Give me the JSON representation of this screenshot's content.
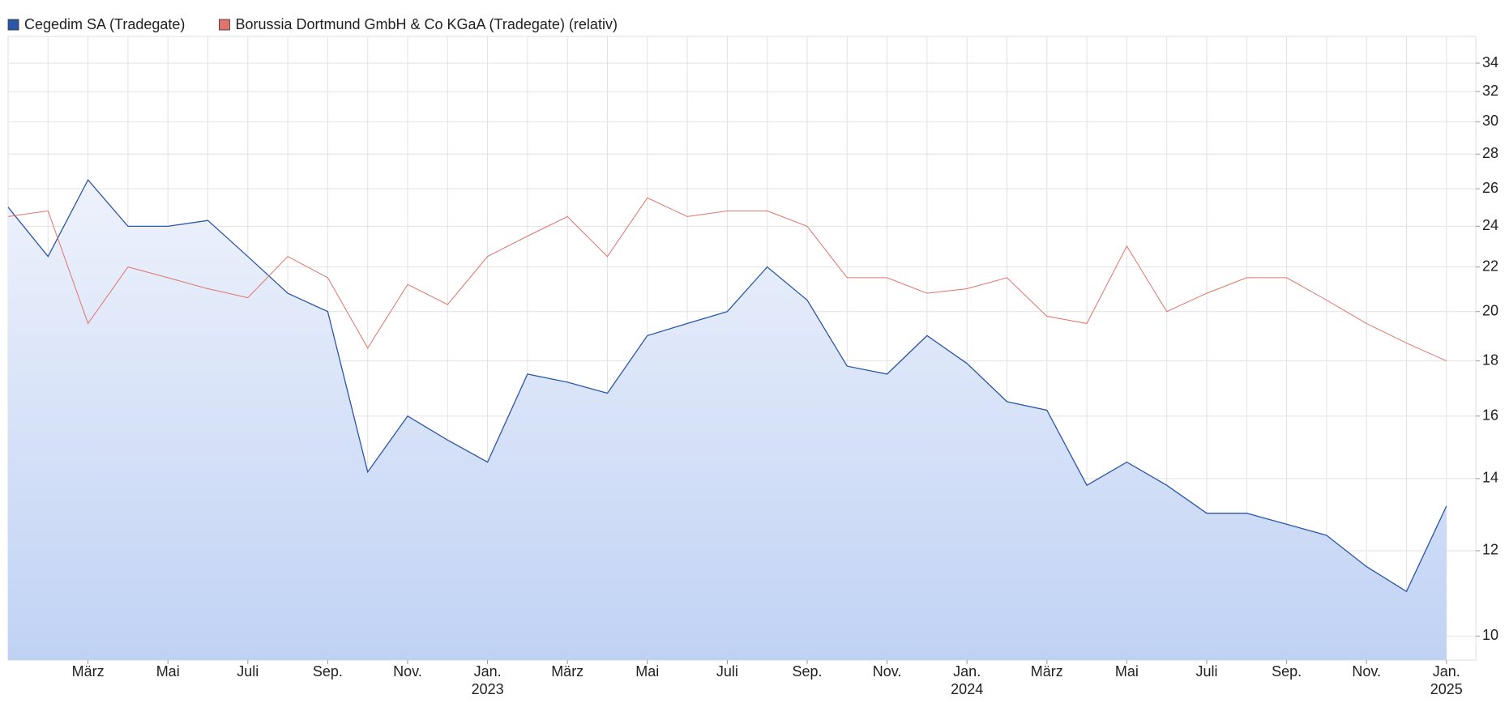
{
  "chart_data": {
    "type": "line",
    "log_scale": true,
    "grid": true,
    "legend": "top-left",
    "x": [
      "2022-01",
      "2022-02",
      "2022-03",
      "2022-04",
      "2022-05",
      "2022-06",
      "2022-07",
      "2022-08",
      "2022-09",
      "2022-10",
      "2022-11",
      "2022-12",
      "2023-01",
      "2023-02",
      "2023-03",
      "2023-04",
      "2023-05",
      "2023-06",
      "2023-07",
      "2023-08",
      "2023-09",
      "2023-10",
      "2023-11",
      "2023-12",
      "2024-01",
      "2024-02",
      "2024-03",
      "2024-04",
      "2024-05",
      "2024-06",
      "2024-07",
      "2024-08",
      "2024-09",
      "2024-10",
      "2024-11",
      "2024-12",
      "2025-01"
    ],
    "series": [
      {
        "name": "Cegedim SA (Tradegate)",
        "color": "#2a56a6",
        "area": true,
        "values": [
          25.0,
          22.5,
          26.5,
          24.0,
          24.0,
          24.3,
          22.5,
          20.8,
          20.0,
          14.2,
          16.0,
          15.2,
          14.5,
          17.5,
          17.2,
          16.8,
          19.0,
          19.5,
          20.0,
          22.0,
          20.5,
          17.8,
          17.5,
          19.0,
          17.9,
          16.5,
          16.2,
          13.8,
          14.5,
          13.8,
          13.0,
          13.0,
          12.7,
          12.4,
          11.6,
          11.0,
          13.2
        ]
      },
      {
        "name": "Borussia Dortmund GmbH & Co KGaA (Tradegate) (relativ)",
        "color": "#e0736a",
        "values": [
          24.5,
          24.8,
          19.5,
          22.0,
          21.5,
          21.0,
          20.6,
          22.5,
          21.5,
          18.5,
          21.2,
          20.3,
          22.5,
          23.5,
          24.5,
          22.5,
          25.5,
          24.5,
          24.8,
          24.8,
          24.0,
          21.5,
          21.5,
          20.8,
          21.0,
          21.5,
          19.8,
          19.5,
          23.0,
          20.0,
          20.8,
          21.5,
          21.5,
          20.5,
          19.5,
          18.7,
          18.0
        ]
      }
    ],
    "ylim": [
      9.5,
      36
    ],
    "yticks": [
      10,
      12,
      14,
      16,
      18,
      20,
      22,
      24,
      26,
      28,
      30,
      32,
      34
    ],
    "xticks": [
      {
        "value": "2022-03",
        "label": "März"
      },
      {
        "value": "2022-05",
        "label": "Mai"
      },
      {
        "value": "2022-07",
        "label": "Juli"
      },
      {
        "value": "2022-09",
        "label": "Sep."
      },
      {
        "value": "2022-11",
        "label": "Nov."
      },
      {
        "value": "2023-01",
        "label": "Jan."
      },
      {
        "value": "2023-03",
        "label": "März"
      },
      {
        "value": "2023-05",
        "label": "Mai"
      },
      {
        "value": "2023-07",
        "label": "Juli"
      },
      {
        "value": "2023-09",
        "label": "Sep."
      },
      {
        "value": "2023-11",
        "label": "Nov."
      },
      {
        "value": "2024-01",
        "label": "Jan."
      },
      {
        "value": "2024-03",
        "label": "März"
      },
      {
        "value": "2024-05",
        "label": "Mai"
      },
      {
        "value": "2024-07",
        "label": "Juli"
      },
      {
        "value": "2024-09",
        "label": "Sep."
      },
      {
        "value": "2024-11",
        "label": "Nov."
      },
      {
        "value": "2025-01",
        "label": "Jan."
      }
    ],
    "year_ticks": [
      {
        "value": "2023-01",
        "label": "2023"
      },
      {
        "value": "2024-01",
        "label": "2024"
      },
      {
        "value": "2025-01",
        "label": "2025"
      }
    ]
  }
}
